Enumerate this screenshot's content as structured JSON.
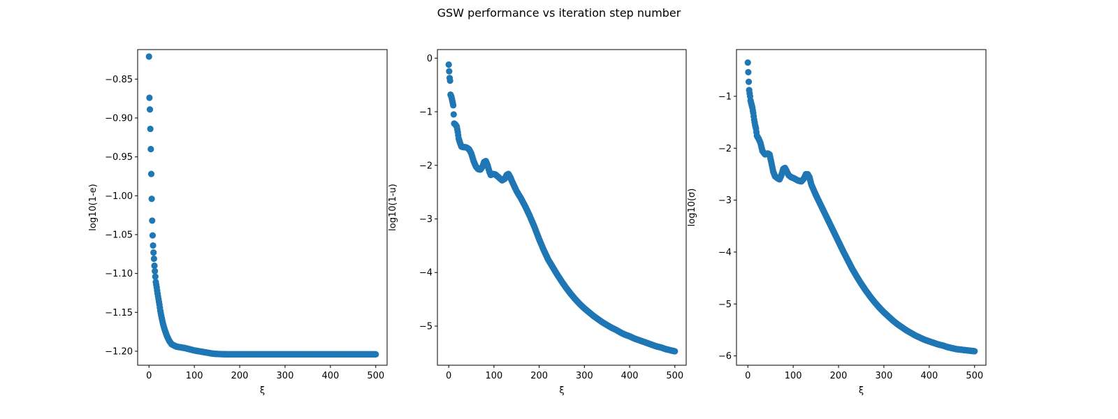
{
  "figure": {
    "title": "GSW performance vs iteration step number"
  },
  "chart_data": [
    {
      "type": "scatter",
      "xlabel": "ξ",
      "ylabel": "log10(1-e)",
      "xlim": [
        -25,
        525
      ],
      "ylim": [
        -1.218,
        -0.812
      ],
      "xticks": [
        0,
        100,
        200,
        300,
        400,
        500
      ],
      "yticks": [
        -1.2,
        -1.15,
        -1.1,
        -1.05,
        -1.0,
        -0.95,
        -0.9,
        -0.85
      ],
      "ytick_labels": [
        "−1.20",
        "−1.15",
        "−1.10",
        "−1.05",
        "−1.00",
        "−0.95",
        "−0.90",
        "−0.85"
      ],
      "color": "#1f77b4",
      "series": [
        {
          "points": [
            [
              0,
              -0.821
            ],
            [
              1,
              -0.874
            ],
            [
              2,
              -0.889
            ],
            [
              3,
              -0.914
            ],
            [
              4,
              -0.94
            ],
            [
              5,
              -0.972
            ],
            [
              6,
              -1.004
            ],
            [
              7,
              -1.032
            ],
            [
              8,
              -1.051
            ],
            [
              9,
              -1.064
            ],
            [
              10,
              -1.073
            ],
            [
              11,
              -1.081
            ],
            [
              12,
              -1.09
            ],
            [
              13,
              -1.097
            ],
            [
              14,
              -1.104
            ],
            [
              15,
              -1.111
            ],
            [
              17,
              -1.118
            ],
            [
              19,
              -1.126
            ],
            [
              21,
              -1.133
            ],
            [
              23,
              -1.14
            ],
            [
              25,
              -1.148
            ],
            [
              28,
              -1.157
            ],
            [
              31,
              -1.165
            ],
            [
              35,
              -1.173
            ],
            [
              40,
              -1.181
            ],
            [
              45,
              -1.187
            ],
            [
              50,
              -1.191
            ],
            [
              60,
              -1.194
            ],
            [
              70,
              -1.195
            ],
            [
              80,
              -1.196
            ],
            [
              100,
              -1.199
            ],
            [
              120,
              -1.201
            ],
            [
              140,
              -1.203
            ],
            [
              150,
              -1.2035
            ],
            [
              175,
              -1.204
            ],
            [
              200,
              -1.204
            ],
            [
              250,
              -1.204
            ],
            [
              300,
              -1.204
            ],
            [
              350,
              -1.204
            ],
            [
              400,
              -1.204
            ],
            [
              450,
              -1.204
            ],
            [
              500,
              -1.204
            ]
          ]
        }
      ]
    },
    {
      "type": "scatter",
      "xlabel": "ξ",
      "ylabel": "log10(1-u)",
      "xlim": [
        -25,
        525
      ],
      "ylim": [
        -5.73,
        0.16
      ],
      "xticks": [
        0,
        100,
        200,
        300,
        400,
        500
      ],
      "yticks": [
        -5,
        -4,
        -3,
        -2,
        -1,
        0
      ],
      "ytick_labels": [
        "−5",
        "−4",
        "−3",
        "−2",
        "−1",
        "0"
      ],
      "color": "#1f77b4",
      "series": [
        {
          "points": [
            [
              0,
              -0.12
            ],
            [
              2,
              -0.37
            ],
            [
              3,
              -0.42
            ],
            [
              4,
              -0.68
            ],
            [
              6,
              -0.72
            ],
            [
              8,
              -0.8
            ],
            [
              10,
              -0.88
            ],
            [
              11,
              -1.05
            ],
            [
              12,
              -1.22
            ],
            [
              15,
              -1.24
            ],
            [
              18,
              -1.28
            ],
            [
              20,
              -1.38
            ],
            [
              22,
              -1.5
            ],
            [
              25,
              -1.58
            ],
            [
              28,
              -1.65
            ],
            [
              32,
              -1.66
            ],
            [
              36,
              -1.66
            ],
            [
              40,
              -1.67
            ],
            [
              45,
              -1.7
            ],
            [
              50,
              -1.78
            ],
            [
              55,
              -1.92
            ],
            [
              60,
              -2.02
            ],
            [
              65,
              -2.07
            ],
            [
              70,
              -2.08
            ],
            [
              75,
              -2.02
            ],
            [
              78,
              -1.94
            ],
            [
              82,
              -1.92
            ],
            [
              86,
              -2.0
            ],
            [
              90,
              -2.12
            ],
            [
              93,
              -2.18
            ],
            [
              98,
              -2.16
            ],
            [
              103,
              -2.17
            ],
            [
              110,
              -2.22
            ],
            [
              118,
              -2.28
            ],
            [
              124,
              -2.25
            ],
            [
              128,
              -2.18
            ],
            [
              132,
              -2.16
            ],
            [
              136,
              -2.22
            ],
            [
              140,
              -2.3
            ],
            [
              150,
              -2.48
            ],
            [
              160,
              -2.62
            ],
            [
              170,
              -2.78
            ],
            [
              180,
              -2.96
            ],
            [
              190,
              -3.16
            ],
            [
              200,
              -3.38
            ],
            [
              210,
              -3.58
            ],
            [
              220,
              -3.76
            ],
            [
              230,
              -3.9
            ],
            [
              240,
              -4.04
            ],
            [
              250,
              -4.17
            ],
            [
              260,
              -4.29
            ],
            [
              270,
              -4.4
            ],
            [
              280,
              -4.5
            ],
            [
              290,
              -4.59
            ],
            [
              300,
              -4.67
            ],
            [
              310,
              -4.74
            ],
            [
              320,
              -4.81
            ],
            [
              330,
              -4.87
            ],
            [
              340,
              -4.93
            ],
            [
              350,
              -4.98
            ],
            [
              360,
              -5.03
            ],
            [
              370,
              -5.07
            ],
            [
              380,
              -5.12
            ],
            [
              390,
              -5.16
            ],
            [
              400,
              -5.19
            ],
            [
              410,
              -5.23
            ],
            [
              420,
              -5.26
            ],
            [
              430,
              -5.29
            ],
            [
              440,
              -5.32
            ],
            [
              450,
              -5.35
            ],
            [
              460,
              -5.38
            ],
            [
              470,
              -5.4
            ],
            [
              480,
              -5.43
            ],
            [
              490,
              -5.45
            ],
            [
              500,
              -5.47
            ]
          ]
        }
      ]
    },
    {
      "type": "scatter",
      "xlabel": "ξ",
      "ylabel": "log10(σ)",
      "xlim": [
        -25,
        525
      ],
      "ylim": [
        -6.18,
        -0.1
      ],
      "xticks": [
        0,
        100,
        200,
        300,
        400,
        500
      ],
      "yticks": [
        -6,
        -5,
        -4,
        -3,
        -2,
        -1
      ],
      "ytick_labels": [
        "−6",
        "−5",
        "−4",
        "−3",
        "−2",
        "−1"
      ],
      "color": "#1f77b4",
      "series": [
        {
          "points": [
            [
              0,
              -0.35
            ],
            [
              2,
              -0.72
            ],
            [
              3,
              -0.88
            ],
            [
              5,
              -1.0
            ],
            [
              6,
              -1.08
            ],
            [
              8,
              -1.15
            ],
            [
              10,
              -1.22
            ],
            [
              12,
              -1.32
            ],
            [
              14,
              -1.45
            ],
            [
              16,
              -1.55
            ],
            [
              18,
              -1.62
            ],
            [
              20,
              -1.76
            ],
            [
              24,
              -1.82
            ],
            [
              28,
              -1.9
            ],
            [
              32,
              -2.05
            ],
            [
              38,
              -2.12
            ],
            [
              44,
              -2.1
            ],
            [
              48,
              -2.12
            ],
            [
              52,
              -2.28
            ],
            [
              56,
              -2.45
            ],
            [
              60,
              -2.54
            ],
            [
              66,
              -2.58
            ],
            [
              70,
              -2.6
            ],
            [
              74,
              -2.52
            ],
            [
              78,
              -2.4
            ],
            [
              82,
              -2.38
            ],
            [
              86,
              -2.45
            ],
            [
              90,
              -2.52
            ],
            [
              96,
              -2.56
            ],
            [
              102,
              -2.58
            ],
            [
              110,
              -2.62
            ],
            [
              118,
              -2.64
            ],
            [
              124,
              -2.58
            ],
            [
              128,
              -2.5
            ],
            [
              132,
              -2.5
            ],
            [
              136,
              -2.56
            ],
            [
              140,
              -2.7
            ],
            [
              150,
              -2.9
            ],
            [
              160,
              -3.08
            ],
            [
              170,
              -3.26
            ],
            [
              180,
              -3.44
            ],
            [
              190,
              -3.62
            ],
            [
              200,
              -3.8
            ],
            [
              210,
              -3.98
            ],
            [
              220,
              -4.15
            ],
            [
              230,
              -4.32
            ],
            [
              240,
              -4.47
            ],
            [
              250,
              -4.61
            ],
            [
              260,
              -4.74
            ],
            [
              270,
              -4.86
            ],
            [
              280,
              -4.97
            ],
            [
              290,
              -5.07
            ],
            [
              300,
              -5.16
            ],
            [
              310,
              -5.24
            ],
            [
              320,
              -5.32
            ],
            [
              330,
              -5.39
            ],
            [
              340,
              -5.45
            ],
            [
              350,
              -5.51
            ],
            [
              360,
              -5.56
            ],
            [
              370,
              -5.61
            ],
            [
              380,
              -5.65
            ],
            [
              390,
              -5.69
            ],
            [
              400,
              -5.72
            ],
            [
              410,
              -5.75
            ],
            [
              420,
              -5.78
            ],
            [
              430,
              -5.8
            ],
            [
              440,
              -5.83
            ],
            [
              450,
              -5.85
            ],
            [
              460,
              -5.87
            ],
            [
              470,
              -5.88
            ],
            [
              480,
              -5.89
            ],
            [
              490,
              -5.9
            ],
            [
              500,
              -5.91
            ]
          ]
        }
      ]
    }
  ]
}
